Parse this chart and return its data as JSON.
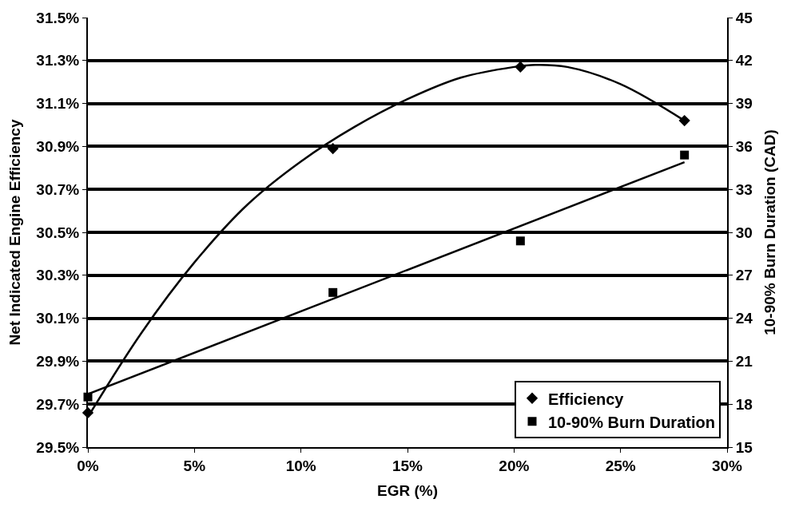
{
  "chart_data": {
    "type": "scatter",
    "xlabel": "EGR (%)",
    "ylabel": "Net Indicated Engine Efficiency",
    "y2label": "10-90% Burn Duration (CAD)",
    "xlim": [
      0,
      30
    ],
    "xticks": [
      {
        "value": 0,
        "label": "0%"
      },
      {
        "value": 5,
        "label": "5%"
      },
      {
        "value": 10,
        "label": "10%"
      },
      {
        "value": 15,
        "label": "15%"
      },
      {
        "value": 20,
        "label": "20%"
      },
      {
        "value": 25,
        "label": "25%"
      },
      {
        "value": 30,
        "label": "30%"
      }
    ],
    "ylim": [
      29.5,
      31.5
    ],
    "yticks": [
      {
        "value": 29.5,
        "label": "29.5%"
      },
      {
        "value": 29.7,
        "label": "29.7%"
      },
      {
        "value": 29.9,
        "label": "29.9%"
      },
      {
        "value": 30.1,
        "label": "30.1%"
      },
      {
        "value": 30.3,
        "label": "30.3%"
      },
      {
        "value": 30.5,
        "label": "30.5%"
      },
      {
        "value": 30.7,
        "label": "30.7%"
      },
      {
        "value": 30.9,
        "label": "30.9%"
      },
      {
        "value": 31.1,
        "label": "31.1%"
      },
      {
        "value": 31.3,
        "label": "31.3%"
      },
      {
        "value": 31.5,
        "label": "31.5%"
      }
    ],
    "y2lim": [
      15,
      45
    ],
    "y2ticks": [
      15,
      18,
      21,
      24,
      27,
      30,
      33,
      36,
      39,
      42,
      45
    ],
    "grid": "y",
    "legend": "bottom right",
    "series": [
      {
        "name": "Efficiency",
        "marker": "diamond",
        "color": "#000000",
        "x": [
          0,
          11.5,
          20.3,
          28.0
        ],
        "values": [
          29.66,
          30.89,
          31.27,
          31.02
        ]
      },
      {
        "name": "10-90% Burn Duration",
        "marker": "square",
        "color": "#000000",
        "axis": "y2",
        "x": [
          0,
          11.5,
          20.3,
          28.0
        ],
        "values": [
          18.5,
          25.8,
          29.4,
          35.4
        ]
      },
      {
        "type": "line",
        "marker": "none",
        "line_style": "solid",
        "color": "#000000",
        "x": [
          0,
          2.5,
          5,
          7.5,
          10,
          12.5,
          15,
          17.5,
          20,
          21,
          22.5,
          25,
          28
        ],
        "values": [
          29.64,
          30.03,
          30.36,
          30.63,
          30.83,
          30.99,
          31.12,
          31.22,
          31.27,
          31.28,
          31.27,
          31.19,
          31.02
        ]
      },
      {
        "type": "line",
        "marker": "none",
        "line_style": "solid",
        "color": "#000000",
        "axis": "y2",
        "x": [
          0,
          28
        ],
        "values": [
          18.7,
          34.9
        ]
      }
    ]
  }
}
